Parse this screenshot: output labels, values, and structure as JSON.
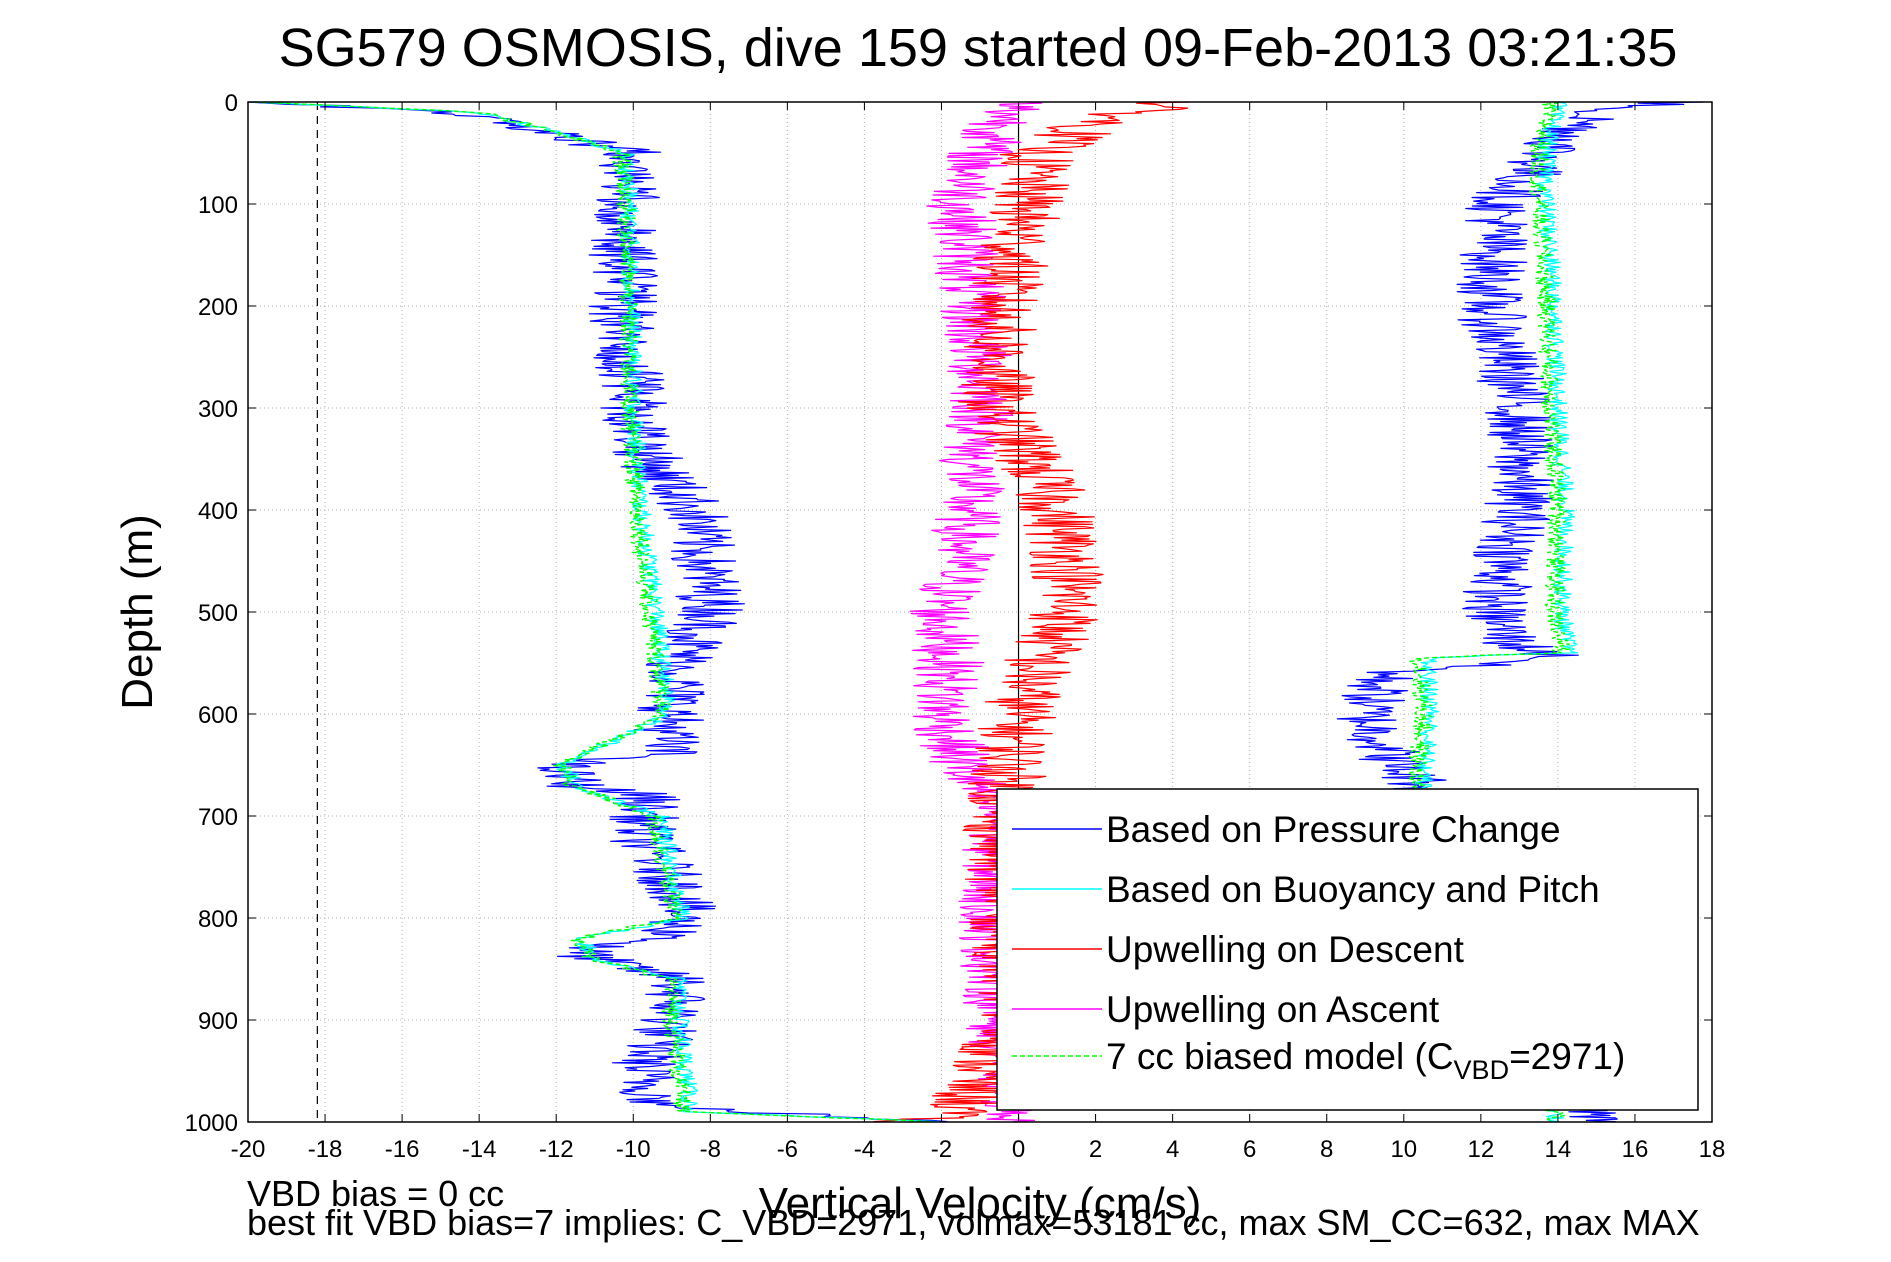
{
  "chart_data": {
    "type": "line",
    "title": "SG579 OSMOSIS, dive 159 started 09-Feb-2013 03:21:35",
    "xlabel": "Vertical Velocity (cm/s)",
    "ylabel": "Depth (m)",
    "xlim": [
      -20,
      18
    ],
    "ylim": [
      0,
      1000
    ],
    "y_reversed": true,
    "grid": true,
    "x_ticks": [
      -20,
      -18,
      -16,
      -14,
      -12,
      -10,
      -8,
      -6,
      -4,
      -2,
      0,
      2,
      4,
      6,
      8,
      10,
      12,
      14,
      16,
      18
    ],
    "y_ticks": [
      0,
      100,
      200,
      300,
      400,
      500,
      600,
      700,
      800,
      900,
      1000
    ],
    "x_tick_labels": [
      "-20",
      "-18",
      "-16",
      "-14",
      "-12",
      "-10",
      "-8",
      "-6",
      "-4",
      "-2",
      "0",
      "2",
      "4",
      "6",
      "8",
      "10",
      "12",
      "14",
      "16",
      "18"
    ],
    "y_tick_labels": [
      "0",
      "100",
      "200",
      "300",
      "400",
      "500",
      "600",
      "700",
      "800",
      "900",
      "1000"
    ],
    "reference_lines": [
      {
        "style": "dashed",
        "x": -18.2,
        "color": "#000000"
      },
      {
        "style": "solid",
        "x": 0,
        "color": "#000000"
      }
    ],
    "legend_position": "bottom-right",
    "series": [
      {
        "name": "Based on Pressure Change",
        "color": "#0000ff",
        "noise": 0.9,
        "descent": {
          "depth": [
            0,
            10,
            30,
            50,
            100,
            200,
            300,
            350,
            400,
            450,
            500,
            550,
            600,
            640,
            650,
            670,
            680,
            720,
            780,
            820,
            830,
            840,
            860,
            900,
            950,
            985,
            1000
          ],
          "w": [
            -20,
            -15,
            -12,
            -10,
            -10.2,
            -10.3,
            -10,
            -9.6,
            -8.4,
            -8.2,
            -7.9,
            -8.8,
            -9,
            -9.2,
            -12,
            -11.5,
            -9.6,
            -9.8,
            -8.7,
            -9,
            -11.5,
            -11,
            -8.8,
            -9,
            -9.8,
            -9.3,
            -2
          ]
        },
        "ascent": {
          "depth": [
            0,
            10,
            40,
            80,
            100,
            200,
            300,
            400,
            500,
            530,
            545,
            560,
            600,
            650,
            670,
            1000
          ],
          "w": [
            17,
            15,
            14,
            13,
            12.5,
            12.2,
            13,
            13,
            12.3,
            12.8,
            14,
            9.5,
            9,
            9.8,
            10.5,
            15
          ]
        }
      },
      {
        "name": "Based on Buoyancy and Pitch",
        "color": "#00ffff",
        "noise": 0.25,
        "descent": {
          "depth": [
            0,
            10,
            30,
            50,
            100,
            300,
            400,
            500,
            600,
            650,
            670,
            700,
            800,
            820,
            830,
            840,
            860,
            900,
            990,
            1000
          ],
          "w": [
            -20,
            -14,
            -12,
            -10.2,
            -10.1,
            -10,
            -9.8,
            -9.4,
            -9.1,
            -11.8,
            -11.5,
            -9.3,
            -8.7,
            -11.3,
            -11.2,
            -11,
            -8.8,
            -8.8,
            -8.5,
            -2
          ]
        },
        "ascent": {
          "depth": [
            0,
            50,
            100,
            200,
            300,
            400,
            500,
            540,
            545,
            600,
            670,
            1000
          ],
          "w": [
            14,
            13.7,
            13.7,
            13.9,
            14,
            14.2,
            14.1,
            14.3,
            10.6,
            10.7,
            10.5,
            14
          ]
        }
      },
      {
        "name": "Upwelling on Descent",
        "color": "#ff0000",
        "noise": 1.0,
        "descent": {
          "depth": [
            0,
            20,
            50,
            100,
            200,
            300,
            350,
            400,
            450,
            500,
            550,
            600,
            650,
            700,
            800,
            900,
            950,
            990,
            1000
          ],
          "w": [
            4,
            2,
            0.5,
            0.2,
            -0.5,
            -0.6,
            0.3,
            1,
            1.3,
            1.3,
            0.5,
            0,
            -0.2,
            -0.5,
            -0.3,
            0,
            -1,
            -1.5,
            -3
          ]
        }
      },
      {
        "name": "Upwelling on Ascent",
        "color": "#ff00ff",
        "noise": 0.9,
        "descent": {
          "depth": [
            0,
            50,
            100,
            200,
            300,
            350,
            400,
            450,
            500,
            550,
            600,
            650,
            700,
            800,
            900,
            1000
          ],
          "w": [
            0,
            -1,
            -1.5,
            -1.2,
            -0.9,
            -1.2,
            -1.3,
            -1.5,
            -2,
            -1.8,
            -2,
            -1.5,
            -0.5,
            -0.7,
            -0.5,
            0
          ]
        }
      },
      {
        "name": "7 cc biased model (C",
        "name_sub": "VBD",
        "name_suffix": "=2971)",
        "color": "#00ff00",
        "dashed": true,
        "noise": 0.25,
        "descent": {
          "depth": [
            0,
            10,
            30,
            50,
            100,
            300,
            400,
            500,
            600,
            650,
            670,
            700,
            800,
            820,
            830,
            840,
            860,
            900,
            990,
            1000
          ],
          "w": [
            -20,
            -14,
            -12,
            -10.3,
            -10.2,
            -10.1,
            -9.9,
            -9.6,
            -9.2,
            -11.9,
            -11.6,
            -9.5,
            -8.9,
            -11.4,
            -11.3,
            -11.1,
            -9,
            -9,
            -8.7,
            -2
          ]
        },
        "ascent": {
          "depth": [
            0,
            50,
            100,
            200,
            300,
            400,
            500,
            540,
            545,
            600,
            670,
            1000
          ],
          "w": [
            13.8,
            13.5,
            13.5,
            13.7,
            13.8,
            14,
            13.9,
            14.1,
            10.4,
            10.5,
            10.3,
            14
          ]
        }
      }
    ]
  },
  "footnotes": {
    "bias_line": "VBD bias = 0 cc",
    "fit_line": "best fit VBD bias=7 implies: C_VBD=2971, volmax=53181 cc, max SM_CC=632, max MAX"
  }
}
